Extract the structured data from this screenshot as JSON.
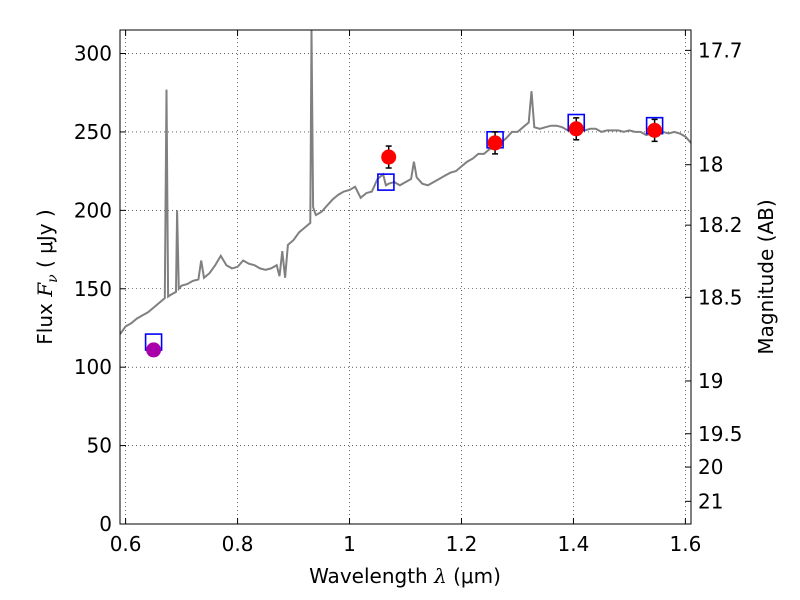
{
  "chart_data": {
    "type": "line",
    "xlabel": {
      "prefix": "Wavelength",
      "symbol": "λ",
      "unit": "(μm)"
    },
    "ylabel": {
      "prefix": "Flux",
      "symbol": "F",
      "subscript": "ν",
      "unit": "( μJy )"
    },
    "y2label": "Magnitude (AB)",
    "xlim": [
      0.59,
      1.61
    ],
    "ylim": [
      0,
      315
    ],
    "grid": true,
    "x_ticks": [
      {
        "value": 0.6,
        "label": "0.6"
      },
      {
        "value": 0.8,
        "label": "0.8"
      },
      {
        "value": 1.0,
        "label": "1"
      },
      {
        "value": 1.2,
        "label": "1.2"
      },
      {
        "value": 1.4,
        "label": "1.4"
      },
      {
        "value": 1.6,
        "label": "1.6"
      }
    ],
    "y_ticks": [
      {
        "value": 0,
        "label": "0"
      },
      {
        "value": 50,
        "label": "50"
      },
      {
        "value": 100,
        "label": "100"
      },
      {
        "value": 150,
        "label": "150"
      },
      {
        "value": 200,
        "label": "200"
      },
      {
        "value": 250,
        "label": "250"
      },
      {
        "value": 300,
        "label": "300"
      }
    ],
    "y2_ticks": [
      {
        "magnitude": 17.7,
        "label": "17.7"
      },
      {
        "magnitude": 18.0,
        "label": "18"
      },
      {
        "magnitude": 18.2,
        "label": "18.2"
      },
      {
        "magnitude": 18.5,
        "label": "18.5"
      },
      {
        "magnitude": 19.0,
        "label": "19"
      },
      {
        "magnitude": 19.5,
        "label": "19.5"
      },
      {
        "magnitude": 20.0,
        "label": "20"
      },
      {
        "magnitude": 21.0,
        "label": "21"
      }
    ],
    "colors": {
      "spectrum": "#808080",
      "observed": "#ff0000",
      "observed_first": "#aa00aa",
      "model": "#0000ff",
      "errorbar": "#000000"
    },
    "series": [
      {
        "kind": "spectrum",
        "x": [
          0.59,
          0.6,
          0.61,
          0.62,
          0.63,
          0.64,
          0.65,
          0.66,
          0.67,
          0.673,
          0.676,
          0.68,
          0.69,
          0.692,
          0.695,
          0.7,
          0.71,
          0.72,
          0.73,
          0.735,
          0.74,
          0.75,
          0.76,
          0.77,
          0.78,
          0.79,
          0.8,
          0.81,
          0.82,
          0.83,
          0.84,
          0.85,
          0.86,
          0.87,
          0.875,
          0.88,
          0.885,
          0.89,
          0.9,
          0.91,
          0.92,
          0.93,
          0.932,
          0.935,
          0.94,
          0.95,
          0.96,
          0.97,
          0.98,
          0.99,
          1.0,
          1.01,
          1.02,
          1.03,
          1.04,
          1.05,
          1.06,
          1.065,
          1.07,
          1.08,
          1.09,
          1.1,
          1.11,
          1.115,
          1.12,
          1.13,
          1.14,
          1.15,
          1.16,
          1.17,
          1.18,
          1.19,
          1.2,
          1.21,
          1.22,
          1.23,
          1.24,
          1.25,
          1.26,
          1.27,
          1.28,
          1.29,
          1.3,
          1.31,
          1.32,
          1.325,
          1.33,
          1.34,
          1.35,
          1.36,
          1.37,
          1.38,
          1.39,
          1.4,
          1.41,
          1.42,
          1.43,
          1.44,
          1.45,
          1.46,
          1.47,
          1.48,
          1.49,
          1.5,
          1.51,
          1.52,
          1.53,
          1.54,
          1.55,
          1.56,
          1.57,
          1.58,
          1.59,
          1.6,
          1.61
        ],
        "y": [
          121,
          126,
          128,
          131,
          133,
          135,
          138,
          141,
          144,
          277,
          145,
          146,
          148,
          200,
          150,
          152,
          153,
          155,
          156,
          168,
          157,
          160,
          165,
          171,
          165,
          163,
          164,
          168,
          166,
          165,
          163,
          162,
          163,
          165,
          158,
          174,
          157,
          178,
          181,
          186,
          189,
          192,
          315,
          202,
          197,
          199,
          203,
          207,
          210,
          212,
          213,
          215,
          208,
          211,
          212,
          220,
          223,
          216,
          217,
          218,
          216,
          218,
          220,
          231,
          221,
          217,
          216,
          218,
          220,
          222,
          224,
          225,
          228,
          231,
          233,
          236,
          236,
          239,
          240,
          243,
          246,
          250,
          250,
          253,
          256,
          276,
          253,
          252,
          253,
          254,
          254,
          253,
          251,
          252,
          252,
          251,
          252,
          252,
          250,
          251,
          251,
          251,
          250,
          251,
          250,
          250,
          248,
          249,
          248,
          250,
          249,
          250,
          249,
          247,
          243
        ]
      },
      {
        "kind": "observed",
        "points": [
          {
            "x": 0.65,
            "y": 111,
            "err": 3
          },
          {
            "x": 1.07,
            "y": 234,
            "err": 7
          },
          {
            "x": 1.26,
            "y": 243,
            "err": 7
          },
          {
            "x": 1.405,
            "y": 252,
            "err": 7
          },
          {
            "x": 1.545,
            "y": 251,
            "err": 7
          }
        ]
      },
      {
        "kind": "model",
        "points": [
          {
            "x": 0.65,
            "y": 116
          },
          {
            "x": 1.065,
            "y": 218
          },
          {
            "x": 1.26,
            "y": 245
          },
          {
            "x": 1.405,
            "y": 256
          },
          {
            "x": 1.545,
            "y": 254
          }
        ]
      }
    ]
  }
}
